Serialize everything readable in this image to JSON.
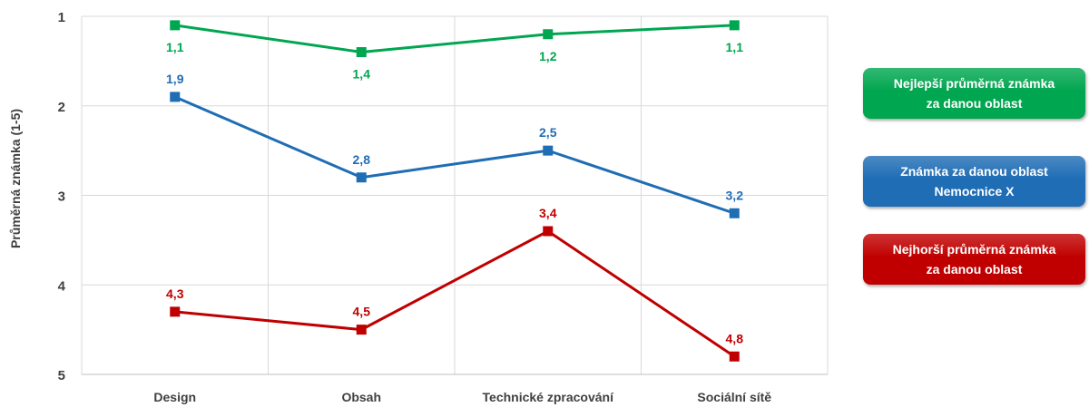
{
  "chart_data": {
    "type": "line",
    "categories": [
      "Design",
      "Obsah",
      "Technické zpracování",
      "Sociální sítě"
    ],
    "ylabel": "Průměrná známka (1-5)",
    "ylim": [
      1,
      5
    ],
    "y_reversed": true,
    "y_ticks": [
      "1",
      "2",
      "3",
      "4",
      "5"
    ],
    "grid": true,
    "legend_position": "right",
    "series": [
      {
        "name": "Nejlepší průměrná známka za danou oblast",
        "color": "#00A650",
        "values": [
          1.1,
          1.4,
          1.2,
          1.1
        ],
        "labels": [
          "1,1",
          "1,4",
          "1,2",
          "1,1"
        ]
      },
      {
        "name": "Známka za danou oblast Nemocnice X",
        "color": "#1F6DB5",
        "values": [
          1.9,
          2.8,
          2.5,
          3.2
        ],
        "labels": [
          "1,9",
          "2,8",
          "2,5",
          "3,2"
        ]
      },
      {
        "name": "Nejhorší průměrná známka za danou oblast",
        "color": "#C00000",
        "values": [
          4.3,
          4.5,
          3.4,
          4.8
        ],
        "labels": [
          "4,3",
          "4,5",
          "3,4",
          "4,8"
        ]
      }
    ]
  },
  "legend": [
    {
      "text": "Nejlepší průměrná známka\nza danou oblast",
      "color": "#00A650"
    },
    {
      "text": "Známka za danou oblast\nNemocnice X",
      "color": "#1F6DB5"
    },
    {
      "text": "Nejhorší průměrná známka\nza danou oblast",
      "color": "#C00000"
    }
  ]
}
